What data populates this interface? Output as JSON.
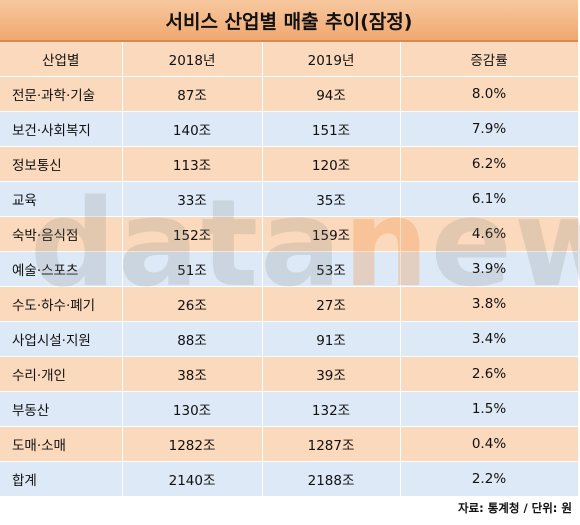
{
  "title": "서비스 산업별 매출 추이(잠정)",
  "headers": [
    "산업별",
    "2018년",
    "2019년",
    "증감률"
  ],
  "rows": [
    {
      "name": "전문·과학·기술",
      "y2018": "87조",
      "y2019": "94조",
      "rate": "8.0%"
    },
    {
      "name": "보건·사회복지",
      "y2018": "140조",
      "y2019": "151조",
      "rate": "7.9%"
    },
    {
      "name": "정보통신",
      "y2018": "113조",
      "y2019": "120조",
      "rate": "6.2%"
    },
    {
      "name": "교육",
      "y2018": "33조",
      "y2019": "35조",
      "rate": "6.1%"
    },
    {
      "name": "숙박·음식점",
      "y2018": "152조",
      "y2019": "159조",
      "rate": "4.6%"
    },
    {
      "name": "예술·스포츠",
      "y2018": "51조",
      "y2019": "53조",
      "rate": "3.9%"
    },
    {
      "name": "수도·하수·폐기",
      "y2018": "26조",
      "y2019": "27조",
      "rate": "3.8%"
    },
    {
      "name": "사업시설·지원",
      "y2018": "88조",
      "y2019": "91조",
      "rate": "3.4%"
    },
    {
      "name": "수리·개인",
      "y2018": "38조",
      "y2019": "39조",
      "rate": "2.6%"
    },
    {
      "name": "부동산",
      "y2018": "130조",
      "y2019": "132조",
      "rate": "1.5%"
    },
    {
      "name": "도매·소매",
      "y2018": "1282조",
      "y2019": "1287조",
      "rate": "0.4%"
    },
    {
      "name": "합계",
      "y2018": "2140조",
      "y2019": "2188조",
      "rate": "2.2%"
    }
  ],
  "watermark": {
    "part1": "data",
    "part2": "n",
    "part3": "ews"
  },
  "source": "자료: 통계청 / 단위: 원"
}
